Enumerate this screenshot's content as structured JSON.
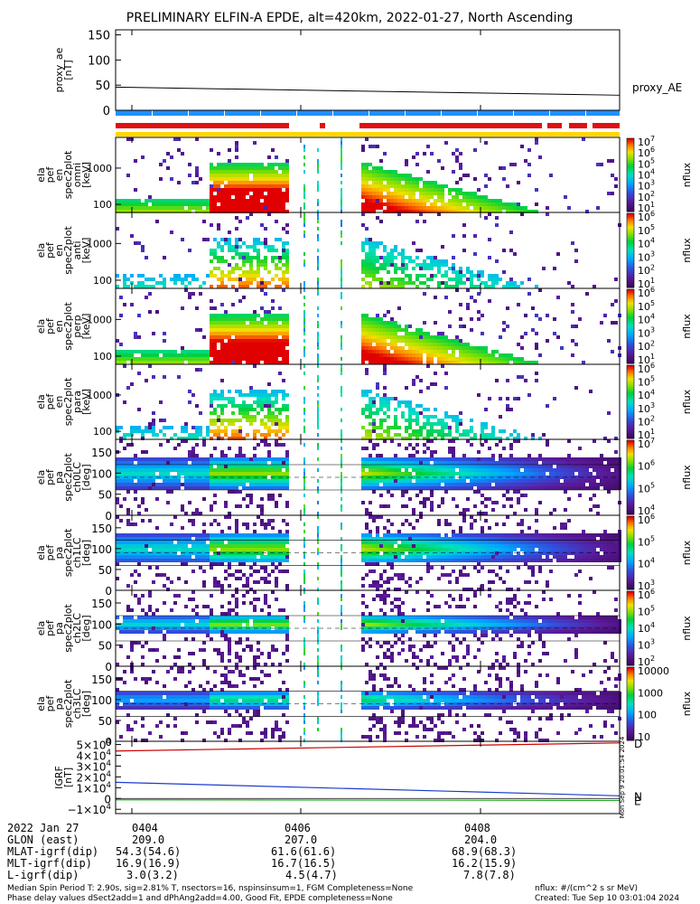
{
  "title": "PRELIMINARY ELFIN-A EPDE, alt=420km, 2022-01-27, North Ascending",
  "chart_data": {
    "type": "heatmap",
    "time_ticks": [
      "0404",
      "0406",
      "0408"
    ],
    "panels": [
      {
        "ylabel": [
          "proxy_ae",
          "[nT]"
        ],
        "kind": "line",
        "yticks": [
          "150",
          "100",
          "50",
          "0"
        ],
        "ylim": [
          0,
          160
        ],
        "line_label": "proxy_AE",
        "line": {
          "x": [
            0,
            1
          ],
          "y": [
            46,
            30
          ]
        }
      },
      {
        "ylabel": [
          "ela",
          "pef",
          "en",
          "spec2plot",
          "omni",
          "[keV]"
        ],
        "kind": "energy",
        "yticks": [
          "1000",
          "100"
        ],
        "cbar": [
          "10^7",
          "10^6",
          "10^5",
          "10^4",
          "10^3",
          "10^2",
          "10^1"
        ],
        "cbar_label": "nflux"
      },
      {
        "ylabel": [
          "ela",
          "pef",
          "en",
          "spec2plot",
          "anti",
          "[keV]"
        ],
        "kind": "energy_sparse",
        "yticks": [
          "1000",
          "100"
        ],
        "cbar": [
          "10^6",
          "10^5",
          "10^4",
          "10^3",
          "10^2",
          "10^1"
        ],
        "cbar_label": "nflux"
      },
      {
        "ylabel": [
          "ela",
          "pef",
          "en",
          "spec2plot",
          "perp",
          "[keV]"
        ],
        "kind": "energy",
        "yticks": [
          "1000",
          "100"
        ],
        "cbar": [
          "10^6",
          "10^5",
          "10^4",
          "10^3",
          "10^2",
          "10^1"
        ],
        "cbar_label": "nflux"
      },
      {
        "ylabel": [
          "ela",
          "pef",
          "en",
          "spec2plot",
          "para",
          "[keV]"
        ],
        "kind": "energy_sparse",
        "yticks": [
          "1000",
          "100"
        ],
        "cbar": [
          "10^6",
          "10^5",
          "10^4",
          "10^3",
          "10^2",
          "10^1"
        ],
        "cbar_label": "nflux"
      },
      {
        "ylabel": [
          "ela",
          "pef",
          "pa",
          "spec2plot",
          "ch0LC",
          "[deg]"
        ],
        "kind": "pitch",
        "yticks": [
          "150",
          "100",
          "50",
          "0"
        ],
        "cbar": [
          "10^7",
          "10^6",
          "10^5",
          "10^4"
        ],
        "cbar_label": "nflux"
      },
      {
        "ylabel": [
          "ela",
          "pef",
          "pa",
          "spec2plot",
          "ch1LC",
          "[deg]"
        ],
        "kind": "pitch",
        "yticks": [
          "150",
          "100",
          "50",
          "0"
        ],
        "cbar": [
          "10^6",
          "10^5",
          "10^4",
          "10^3"
        ],
        "cbar_label": "nflux"
      },
      {
        "ylabel": [
          "ela",
          "pef",
          "pa",
          "spec2plot",
          "ch2LC",
          "[deg]"
        ],
        "kind": "pitch_narrow",
        "yticks": [
          "150",
          "100",
          "50",
          "0"
        ],
        "cbar": [
          "10^6",
          "10^5",
          "10^4",
          "10^3",
          "10^2"
        ],
        "cbar_label": "nflux"
      },
      {
        "ylabel": [
          "ela",
          "pef",
          "pa",
          "spec2plot",
          "ch3LC",
          "[deg]"
        ],
        "kind": "pitch_weak",
        "yticks": [
          "150",
          "100",
          "50",
          "0"
        ],
        "cbar": [
          "10000",
          "1000",
          "100",
          "10"
        ],
        "cbar_label": "nflux"
      },
      {
        "ylabel": [
          "IGRF",
          "[nT]"
        ],
        "kind": "igrf",
        "yticks": [
          "5×10^4",
          "4×10^4",
          "3×10^4",
          "2×10^4",
          "1×10^4",
          "0",
          "−1×10^4"
        ],
        "ylim": [
          -14000,
          53000
        ],
        "series": [
          {
            "name": "D",
            "color": "#cc0000",
            "y": [
              44000,
              51500
            ]
          },
          {
            "name": "N",
            "color": "#1a3ccc",
            "y": [
              15000,
              2500
            ]
          },
          {
            "name": "E",
            "color": "#22aa22",
            "y": [
              -1200,
              -1800
            ]
          }
        ],
        "side_label": "Mon Sep 9 20:01:54 2024"
      }
    ]
  },
  "annotations": {
    "rows": [
      {
        "label": "2022 Jan 27",
        "v": [
          "0404",
          "0406",
          "0408"
        ]
      },
      {
        "label": "GLON (east)",
        "v": [
          "209.0",
          "207.0",
          "204.0"
        ]
      },
      {
        "label": "MLAT-igrf(dip)",
        "v": [
          "54.3(54.6)",
          "61.6(61.6)",
          "68.9(68.3)"
        ]
      },
      {
        "label": "MLT-igrf(dip)",
        "v": [
          "16.9(16.9)",
          "16.7(16.5)",
          "16.2(15.9)"
        ]
      },
      {
        "label": "L-igrf(dip)",
        "v": [
          "3.0(3.2)",
          "4.5(4.7)",
          "7.8(7.8)"
        ]
      }
    ]
  },
  "footer": {
    "line1": "Median Spin Period T: 2.90s, sig=2.81% T, nsectors=16, nspinsinsum=1, FGM Completeness=None",
    "line2": "Phase delay values dSect2add=1 and dPhAng2add=4.00, Good Fit, EPDE completeness=None",
    "right1": "nflux: #/(cm^2 s sr MeV)",
    "right2": "Created: Tue Sep 10 03:01:04 2024"
  },
  "colors": {
    "status_blue": "#1e90ff",
    "status_red": "#e01010",
    "status_yellow": "#ffd700"
  }
}
